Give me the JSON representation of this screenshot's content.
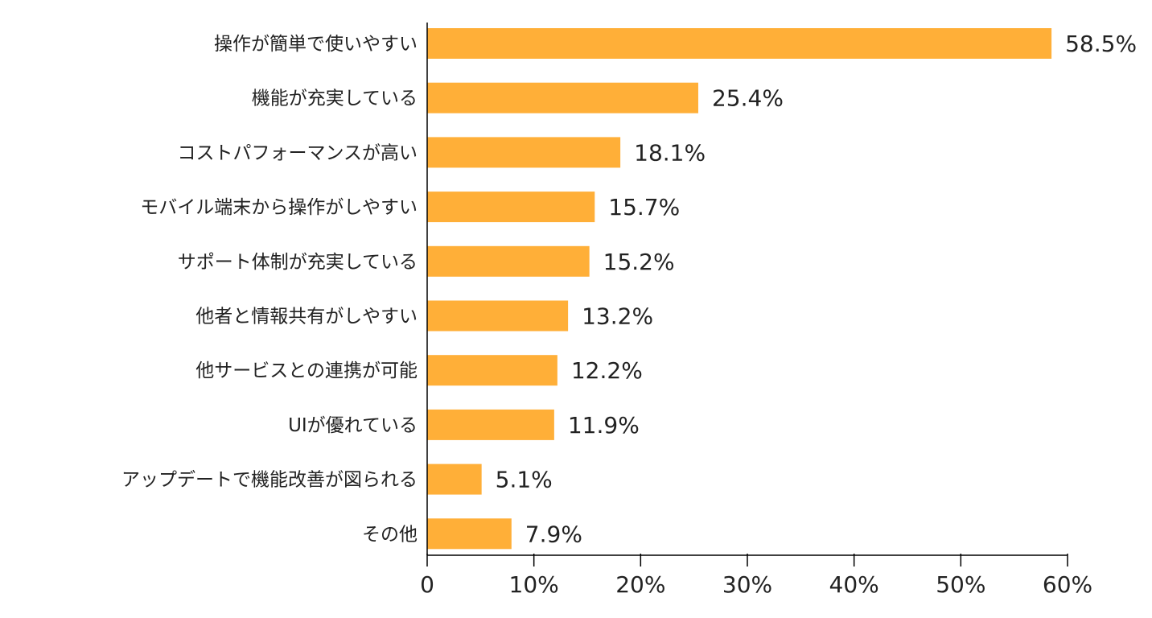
{
  "chart_data": {
    "type": "bar",
    "orientation": "horizontal",
    "title": "",
    "xlabel": "",
    "ylabel": "",
    "categories": [
      "操作が簡単で使いやすい",
      "機能が充実している",
      "コストパフォーマンスが高い",
      "モバイル端末から操作がしやすい",
      "サポート体制が充実している",
      "他者と情報共有がしやすい",
      "他サービスとの連携が可能",
      "UIが優れている",
      "アップデートで機能改善が図られる",
      "その他"
    ],
    "values": [
      58.5,
      25.4,
      18.1,
      15.7,
      15.2,
      13.2,
      12.2,
      11.9,
      5.1,
      7.9
    ],
    "value_labels": [
      "58.5%",
      "25.4%",
      "18.1%",
      "15.7%",
      "15.2%",
      "13.2%",
      "12.2%",
      "11.9%",
      "5.1%",
      "7.9%"
    ],
    "xlim": [
      0,
      60
    ],
    "xticks": [
      0,
      10,
      20,
      30,
      40,
      50,
      60
    ],
    "xtick_labels": [
      "0",
      "10%",
      "20%",
      "30%",
      "40%",
      "50%",
      "60%"
    ],
    "grid": false,
    "legend": "none",
    "bar_color": "#FFAF38",
    "axis_color": "#000000"
  }
}
